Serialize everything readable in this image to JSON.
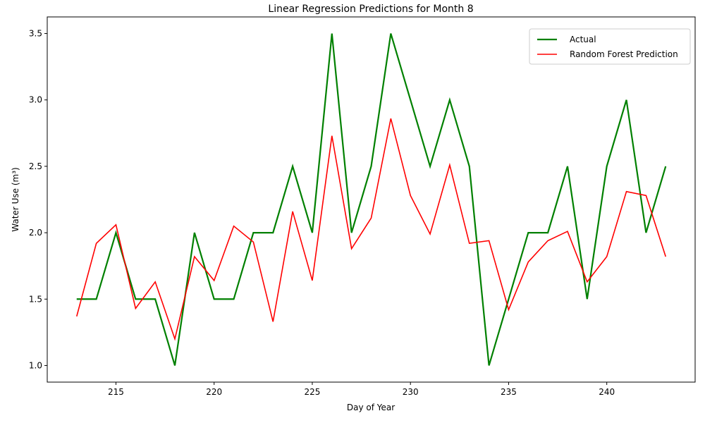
{
  "chart_data": {
    "type": "line",
    "title": "Linear Regression Predictions for Month 8",
    "xlabel": "Day of Year",
    "ylabel": "Water Use (m³)",
    "xlim": [
      211.5,
      244.5
    ],
    "ylim": [
      0.875,
      3.625
    ],
    "x_ticks": [
      215,
      220,
      225,
      230,
      235,
      240
    ],
    "y_ticks": [
      1.0,
      1.5,
      2.0,
      2.5,
      3.0,
      3.5
    ],
    "x_tick_labels": [
      "215",
      "220",
      "225",
      "230",
      "235",
      "240"
    ],
    "y_tick_labels": [
      "1.0",
      "1.5",
      "2.0",
      "2.5",
      "3.0",
      "3.5"
    ],
    "grid": false,
    "legend": "upper right",
    "x": [
      213,
      214,
      215,
      216,
      217,
      218,
      219,
      220,
      221,
      222,
      223,
      224,
      225,
      226,
      227,
      228,
      229,
      230,
      231,
      232,
      233,
      234,
      235,
      236,
      237,
      238,
      239,
      240,
      241,
      242,
      243
    ],
    "series": [
      {
        "name": "Actual",
        "color": "#008000",
        "values": [
          1.5,
          1.5,
          2.0,
          1.5,
          1.5,
          1.0,
          2.0,
          1.5,
          1.5,
          2.0,
          2.0,
          2.5,
          2.0,
          3.5,
          2.0,
          2.5,
          3.5,
          3.0,
          2.5,
          3.0,
          2.5,
          1.0,
          1.5,
          2.0,
          2.0,
          2.5,
          1.5,
          2.5,
          3.0,
          2.0,
          2.5
        ]
      },
      {
        "name": "Random Forest Prediction",
        "color": "#ff0000",
        "values": [
          1.37,
          1.92,
          2.06,
          1.43,
          1.63,
          1.2,
          1.82,
          1.64,
          2.05,
          1.93,
          1.33,
          2.16,
          1.64,
          2.73,
          1.88,
          2.11,
          2.86,
          2.28,
          1.99,
          2.51,
          1.92,
          1.94,
          1.42,
          1.78,
          1.94,
          2.01,
          1.63,
          1.82,
          2.31,
          2.28,
          1.82
        ]
      }
    ]
  }
}
